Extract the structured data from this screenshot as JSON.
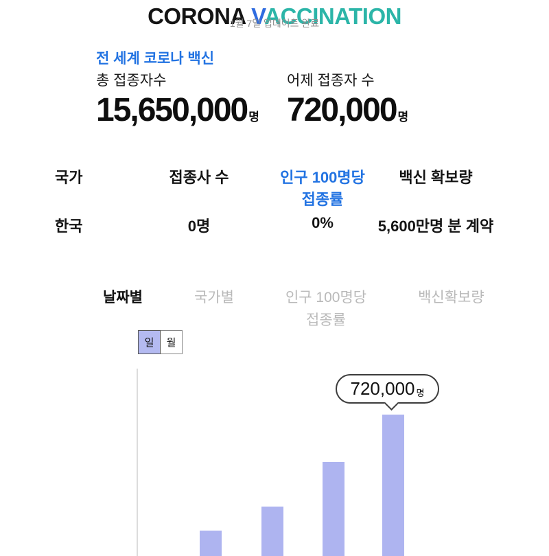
{
  "header": {
    "title_parts": [
      {
        "text": "CORONA ",
        "color": "#141414"
      },
      {
        "text": "V",
        "color": "#2f6ce0"
      },
      {
        "text": "ACCINATION",
        "color": "#2cb5a8"
      }
    ],
    "subtitle": "1월 7일 업데이트 완료"
  },
  "summary": {
    "section_label": "전 세계 코로나 백신",
    "stats": [
      {
        "label": "총 접종자수",
        "value": "15,650,000",
        "unit": "명"
      },
      {
        "label": "어제 접종자 수",
        "value": "720,000",
        "unit": "명"
      }
    ]
  },
  "table": {
    "headers": [
      {
        "label": "국가"
      },
      {
        "label": "접종사 수"
      },
      {
        "line1": "인구 100명당",
        "line2": "접종률",
        "highlight": true
      },
      {
        "label": "백신 확보량"
      }
    ],
    "rows": [
      {
        "country": "한국",
        "doses": "0명",
        "per100": "0%",
        "secured": "5,600만명 분 계약"
      }
    ]
  },
  "tabs": [
    {
      "label": "날짜별",
      "active": true
    },
    {
      "label": "국가별",
      "active": false
    },
    {
      "line1": "인구 100명당",
      "line2": "접종률",
      "active": false
    },
    {
      "label": "백신확보량",
      "active": false
    }
  ],
  "period_toggle": [
    {
      "label": "일",
      "selected": true
    },
    {
      "label": "월",
      "selected": false
    }
  ],
  "colors": {
    "accent_blue": "#2273e2",
    "title_teal": "#2cb5a8",
    "bar": "#aeb4f0",
    "tab_inactive": "#b9b9b9",
    "subtitle_gray": "#8f8f8f"
  },
  "chart_data": {
    "type": "bar",
    "categories": [
      "",
      "",
      "",
      ""
    ],
    "values": [
      130000,
      250000,
      480000,
      720000
    ],
    "values_note": "Only the last bar is labeled on screen (720,000명); the first three values are estimated from bar heights. X-axis labels and baseline are cut off below the viewport.",
    "annotation": {
      "index": 3,
      "value": "720,000",
      "unit": "명"
    },
    "title": "",
    "xlabel": "",
    "ylabel": "",
    "grid": false,
    "legend": false
  }
}
